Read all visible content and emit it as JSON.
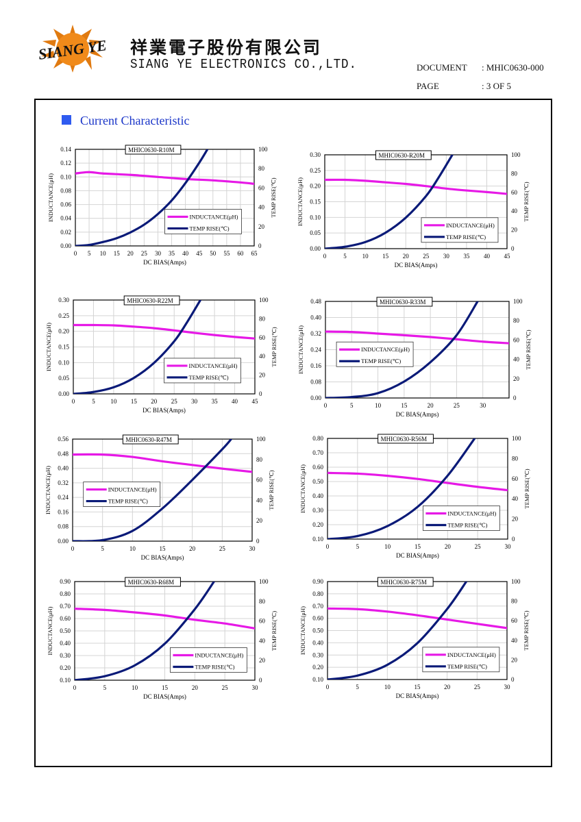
{
  "header": {
    "company_cn": "祥業電子股份有限公司",
    "company_en": "SIANG YE ELECTRONICS CO.,LTD.",
    "logo_text": "SIANG YE",
    "document_label": "DOCUMENT",
    "document_value": ": MHIC0630-000",
    "page_label": "PAGE",
    "page_value": ": 3 OF 5"
  },
  "section": {
    "title": "Current Characteristic"
  },
  "colors": {
    "inductance": "#e619e6",
    "temp": "#0a1a78",
    "accent": "#2f5bf0",
    "grid": "#d4d4d4"
  },
  "chart_data": [
    {
      "type": "line",
      "title": "MHIC0630-R10M",
      "xlabel": "DC BIAS(Amps)",
      "ylabel": "INDUCTANCE(μH)",
      "y2label": "TEMP RISE(℃)",
      "xlim": [
        0,
        65
      ],
      "xticks": [
        0,
        5,
        10,
        15,
        20,
        25,
        30,
        35,
        40,
        45,
        50,
        55,
        60,
        65
      ],
      "ylim": [
        0,
        0.14
      ],
      "yticks": [
        "0.00",
        "0.02",
        "0.04",
        "0.06",
        "0.08",
        "0.10",
        "0.12",
        "0.14"
      ],
      "y2lim": [
        0,
        100
      ],
      "y2ticks": [
        0,
        20,
        40,
        60,
        80,
        100
      ],
      "legend": "center-right",
      "grid": true,
      "series": [
        {
          "name": "INDUCTANCE(μH)",
          "axis": "left",
          "x": [
            0,
            5,
            10,
            20,
            30,
            40,
            50,
            60,
            65
          ],
          "y": [
            0.105,
            0.107,
            0.105,
            0.103,
            0.1,
            0.097,
            0.095,
            0.092,
            0.09
          ]
        },
        {
          "name": "TEMP RISE(℃)",
          "axis": "right",
          "x": [
            0,
            5,
            10,
            15,
            20,
            25,
            30,
            35,
            40,
            45,
            48
          ],
          "y": [
            0,
            1,
            4,
            8,
            14,
            22,
            33,
            47,
            65,
            86,
            100
          ]
        }
      ]
    },
    {
      "type": "line",
      "title": "MHIC0630-R20M",
      "xlabel": "DC BIAS(Amps)",
      "ylabel": "INDUCTANCE(μH)",
      "y2label": "TEMP RISE(℃)",
      "xlim": [
        0,
        45
      ],
      "xticks": [
        0,
        5,
        10,
        15,
        20,
        25,
        30,
        35,
        40,
        45
      ],
      "ylim": [
        0,
        0.3
      ],
      "yticks": [
        "0.00",
        "0.05",
        "0.10",
        "0.15",
        "0.20",
        "0.25",
        "0.30"
      ],
      "y2lim": [
        0,
        100
      ],
      "y2ticks": [
        0,
        20,
        40,
        60,
        80,
        100
      ],
      "legend": "bottom-right",
      "grid": true,
      "series": [
        {
          "name": "INDUCTANCE(μH)",
          "axis": "left",
          "x": [
            0,
            5,
            10,
            15,
            20,
            25,
            30,
            35,
            40,
            45
          ],
          "y": [
            0.22,
            0.22,
            0.217,
            0.212,
            0.207,
            0.2,
            0.192,
            0.186,
            0.181,
            0.175
          ]
        },
        {
          "name": "TEMP RISE(℃)",
          "axis": "right",
          "x": [
            0,
            5,
            10,
            15,
            20,
            25,
            28,
            31.5
          ],
          "y": [
            0,
            2,
            7,
            17,
            33,
            56,
            75,
            100
          ]
        }
      ]
    },
    {
      "type": "line",
      "title": "MHIC0630-R22M",
      "xlabel": "DC BIAS(Amps)",
      "ylabel": "INDUCTANCE(μH)",
      "y2label": "TEMP RISE(℃)",
      "xlim": [
        0,
        45
      ],
      "xticks": [
        0,
        5,
        10,
        15,
        20,
        25,
        30,
        35,
        40,
        45
      ],
      "ylim": [
        0,
        0.3
      ],
      "yticks": [
        "0.00",
        "0.05",
        "0.10",
        "0.15",
        "0.20",
        "0.25",
        "0.30"
      ],
      "y2lim": [
        0,
        100
      ],
      "y2ticks": [
        0,
        20,
        40,
        60,
        80,
        100
      ],
      "legend": "center-right",
      "grid": true,
      "series": [
        {
          "name": "INDUCTANCE(μH)",
          "axis": "left",
          "x": [
            0,
            5,
            10,
            15,
            20,
            25,
            30,
            35,
            40,
            45
          ],
          "y": [
            0.22,
            0.22,
            0.219,
            0.215,
            0.21,
            0.203,
            0.195,
            0.188,
            0.182,
            0.177
          ]
        },
        {
          "name": "TEMP RISE(℃)",
          "axis": "right",
          "x": [
            0,
            5,
            10,
            15,
            20,
            25,
            28,
            31.5
          ],
          "y": [
            0,
            2,
            7,
            17,
            33,
            56,
            75,
            100
          ]
        }
      ]
    },
    {
      "type": "line",
      "title": "MHIC0630-R33M",
      "xlabel": "DC BIAS(Amps)",
      "ylabel": "INDUCTANCE(μH)",
      "y2label": "TEMP RISE(℃)",
      "xlim": [
        0,
        35
      ],
      "xticks": [
        0,
        5,
        10,
        15,
        20,
        25,
        30
      ],
      "ylim": [
        0,
        0.48
      ],
      "yticks": [
        "0.00",
        "0.08",
        "0.16",
        "0.24",
        "0.32",
        "0.40",
        "0.48"
      ],
      "y2lim": [
        0,
        100
      ],
      "y2ticks": [
        0,
        20,
        40,
        60,
        80,
        100
      ],
      "legend": "center-left",
      "grid": true,
      "series": [
        {
          "name": "INDUCTANCE(μH)",
          "axis": "left",
          "x": [
            0,
            5,
            10,
            15,
            20,
            25,
            30,
            35
          ],
          "y": [
            0.33,
            0.328,
            0.32,
            0.312,
            0.303,
            0.292,
            0.28,
            0.272
          ]
        },
        {
          "name": "TEMP RISE(℃)",
          "axis": "right",
          "x": [
            0,
            5,
            10,
            15,
            20,
            25,
            29
          ],
          "y": [
            0,
            1,
            5,
            17,
            37,
            65,
            100
          ]
        }
      ]
    },
    {
      "type": "line",
      "title": "MHIC0630-R47M",
      "xlabel": "DC BIAS(Amps)",
      "ylabel": "INDUCTANCE(μH)",
      "y2label": "TEMP RISE(℃)",
      "xlim": [
        0,
        30
      ],
      "xticks": [
        0,
        5,
        10,
        15,
        20,
        25,
        30
      ],
      "ylim": [
        0,
        0.56
      ],
      "yticks": [
        "0.00",
        "0.08",
        "0.16",
        "0.24",
        "0.32",
        "0.40",
        "0.48",
        "0.56"
      ],
      "y2lim": [
        0,
        100
      ],
      "y2ticks": [
        0,
        20,
        40,
        60,
        80,
        100
      ],
      "legend": "center-left",
      "grid": true,
      "series": [
        {
          "name": "INDUCTANCE(μH)",
          "axis": "left",
          "x": [
            0,
            5,
            10,
            15,
            20,
            25,
            30
          ],
          "y": [
            0.475,
            0.475,
            0.462,
            0.438,
            0.418,
            0.398,
            0.38
          ]
        },
        {
          "name": "TEMP RISE(℃)",
          "axis": "right",
          "x": [
            0,
            5,
            10,
            15,
            20,
            25,
            26.5
          ],
          "y": [
            0,
            1,
            10,
            32,
            60,
            90,
            100
          ]
        }
      ]
    },
    {
      "type": "line",
      "title": "MHIC0630-R56M",
      "xlabel": "DC BIAS(Amps)",
      "ylabel": "INDUCTANCE(μH)",
      "y2label": "TEMP RISE(℃)",
      "xlim": [
        0,
        30
      ],
      "xticks": [
        0,
        5,
        10,
        15,
        20,
        25,
        30
      ],
      "ylim": [
        0.1,
        0.8
      ],
      "yticks": [
        "0.10",
        "0.20",
        "0.30",
        "0.40",
        "0.50",
        "0.60",
        "0.70",
        "0.80"
      ],
      "y2lim": [
        0,
        100
      ],
      "y2ticks": [
        0,
        20,
        40,
        60,
        80,
        100
      ],
      "legend": "bottom-right",
      "grid": true,
      "series": [
        {
          "name": "INDUCTANCE(μH)",
          "axis": "left",
          "x": [
            0,
            5,
            10,
            15,
            20,
            25,
            30
          ],
          "y": [
            0.56,
            0.555,
            0.54,
            0.518,
            0.49,
            0.463,
            0.44
          ]
        },
        {
          "name": "TEMP RISE(℃)",
          "axis": "right",
          "x": [
            0,
            5,
            10,
            15,
            20,
            24.5
          ],
          "y": [
            0,
            3,
            13,
            32,
            63,
            100
          ]
        }
      ]
    },
    {
      "type": "line",
      "title": "MHIC0630-R68M",
      "xlabel": "DC BIAS(Amps)",
      "ylabel": "INDUCTANCE(μH)",
      "y2label": "TEMP RISE(℃)",
      "xlim": [
        0,
        30
      ],
      "xticks": [
        0,
        5,
        10,
        15,
        20,
        25,
        30
      ],
      "ylim": [
        0.1,
        0.9
      ],
      "yticks": [
        "0.10",
        "0.20",
        "0.30",
        "0.40",
        "0.50",
        "0.60",
        "0.70",
        "0.80",
        "0.90"
      ],
      "y2lim": [
        0,
        100
      ],
      "y2ticks": [
        0,
        20,
        40,
        60,
        80,
        100
      ],
      "legend": "bottom-right",
      "grid": true,
      "series": [
        {
          "name": "INDUCTANCE(μH)",
          "axis": "left",
          "x": [
            0,
            5,
            10,
            15,
            20,
            25,
            30
          ],
          "y": [
            0.68,
            0.67,
            0.65,
            0.625,
            0.59,
            0.56,
            0.52
          ]
        },
        {
          "name": "TEMP RISE(℃)",
          "axis": "right",
          "x": [
            0,
            5,
            10,
            15,
            20,
            23.2
          ],
          "y": [
            0,
            4,
            15,
            37,
            72,
            100
          ]
        }
      ]
    },
    {
      "type": "line",
      "title": "MHIC0630-R75M",
      "xlabel": "DC BIAS(Amps)",
      "ylabel": "INDUCTANCE(μH)",
      "y2label": "TEMP RISE(℃)",
      "xlim": [
        0,
        30
      ],
      "xticks": [
        0,
        5,
        10,
        15,
        20,
        25,
        30
      ],
      "ylim": [
        0.1,
        0.9
      ],
      "yticks": [
        "0.10",
        "0.20",
        "0.30",
        "0.40",
        "0.50",
        "0.60",
        "0.70",
        "0.80",
        "0.90"
      ],
      "y2lim": [
        0,
        100
      ],
      "y2ticks": [
        0,
        20,
        40,
        60,
        80,
        100
      ],
      "legend": "bottom-right",
      "grid": true,
      "series": [
        {
          "name": "INDUCTANCE(μH)",
          "axis": "left",
          "x": [
            0,
            5,
            10,
            15,
            20,
            25,
            30
          ],
          "y": [
            0.68,
            0.675,
            0.655,
            0.625,
            0.59,
            0.555,
            0.52
          ]
        },
        {
          "name": "TEMP RISE(℃)",
          "axis": "right",
          "x": [
            0,
            5,
            10,
            15,
            20,
            23.2
          ],
          "y": [
            0,
            4,
            15,
            37,
            72,
            100
          ]
        }
      ]
    }
  ]
}
